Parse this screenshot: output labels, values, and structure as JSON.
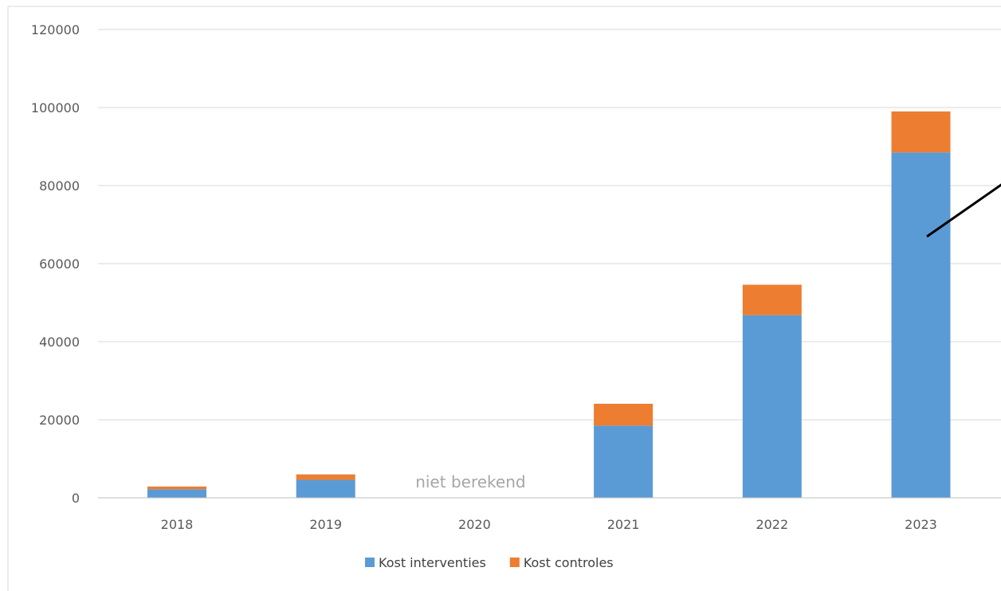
{
  "chart_data": {
    "type": "bar",
    "stacked": true,
    "categories": [
      "2018",
      "2019",
      "2020",
      "2021",
      "2022",
      "2023"
    ],
    "series": [
      {
        "name": "Kost interventies",
        "color": "#5b9bd5",
        "values": [
          2200,
          4600,
          0,
          18500,
          46800,
          88500
        ]
      },
      {
        "name": "Kost controles",
        "color": "#ed7d31",
        "values": [
          700,
          1400,
          0,
          5600,
          7800,
          10500
        ]
      }
    ],
    "ylim": [
      0,
      120000
    ],
    "yticks": [
      0,
      20000,
      40000,
      60000,
      80000,
      100000,
      120000
    ],
    "grid": true,
    "legend_position": "bottom",
    "annotations": [
      {
        "text": "niet berekend",
        "category": "2020"
      }
    ],
    "title": "",
    "xlabel": "",
    "ylabel": ""
  }
}
